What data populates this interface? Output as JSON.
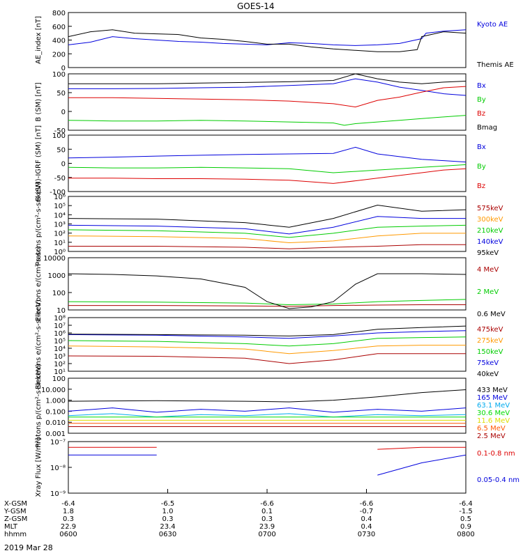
{
  "title": "GOES-14",
  "date_label": "2019 Mar 28",
  "colors": {
    "black": "#000000",
    "blue": "#0000dd",
    "red": "#dd0000",
    "green": "#00cc00",
    "orange": "#ff9900",
    "darkred": "#aa0000",
    "cyan": "#00aaee",
    "purple": "#aa00aa",
    "yellow": "#dddd00",
    "lime": "#00dd00",
    "orangered": "#ff5500",
    "magenta": "#cc00cc"
  },
  "chart_data": [
    {
      "type": "line",
      "ylabel": "AE_index [nT]",
      "ylim": [
        0,
        800
      ],
      "yticks": [
        "0",
        "200",
        "400",
        "600",
        "800"
      ],
      "legend": [
        "Kyoto AE",
        "Themis AE"
      ],
      "series": [
        {
          "name": "Kyoto AE",
          "color": "#0000dd",
          "x": [
            0,
            10,
            20,
            30,
            40,
            50,
            60,
            70,
            80,
            90,
            100,
            110,
            120,
            130,
            140,
            150,
            160,
            162,
            170,
            180
          ],
          "y": [
            330,
            370,
            450,
            420,
            400,
            380,
            370,
            350,
            340,
            330,
            360,
            350,
            330,
            320,
            330,
            350,
            420,
            500,
            530,
            550
          ]
        },
        {
          "name": "Themis AE",
          "color": "#000000",
          "x": [
            0,
            10,
            20,
            30,
            40,
            50,
            60,
            70,
            80,
            90,
            100,
            110,
            120,
            130,
            140,
            150,
            158,
            160,
            170,
            180
          ],
          "y": [
            450,
            520,
            550,
            500,
            490,
            480,
            430,
            410,
            380,
            340,
            340,
            300,
            270,
            250,
            230,
            230,
            260,
            450,
            520,
            500
          ]
        }
      ]
    },
    {
      "type": "line",
      "ylabel": "B (SM) [nT]",
      "ylim": [
        -60,
        110
      ],
      "yticks": [
        "-50",
        "0",
        "50",
        "100"
      ],
      "legend": [
        "Bx",
        "By",
        "Bz",
        "Bmag"
      ],
      "series": [
        {
          "name": "Bx",
          "color": "#0000dd",
          "x": [
            0,
            20,
            40,
            60,
            80,
            100,
            120,
            130,
            140,
            150,
            160,
            170,
            180
          ],
          "y": [
            65,
            65,
            66,
            68,
            70,
            75,
            80,
            95,
            85,
            70,
            60,
            50,
            45
          ]
        },
        {
          "name": "By",
          "color": "#00cc00",
          "x": [
            0,
            20,
            40,
            60,
            80,
            100,
            120,
            125,
            130,
            140,
            150,
            160,
            170,
            180
          ],
          "y": [
            -30,
            -32,
            -32,
            -30,
            -32,
            -35,
            -38,
            -45,
            -40,
            -35,
            -30,
            -25,
            -20,
            -15
          ]
        },
        {
          "name": "Bz",
          "color": "#dd0000",
          "x": [
            0,
            20,
            40,
            60,
            80,
            100,
            120,
            130,
            140,
            150,
            160,
            170,
            180
          ],
          "y": [
            38,
            38,
            36,
            34,
            32,
            28,
            20,
            10,
            30,
            40,
            55,
            68,
            72
          ]
        },
        {
          "name": "Bmag",
          "color": "#000000",
          "x": [
            0,
            20,
            40,
            60,
            80,
            100,
            120,
            130,
            140,
            150,
            160,
            170,
            180
          ],
          "y": [
            80,
            80,
            80,
            82,
            84,
            86,
            90,
            110,
            95,
            85,
            80,
            85,
            88
          ]
        }
      ]
    },
    {
      "type": "line",
      "ylabel": "B (SM)-IGRF (SM) [nT]",
      "ylim": [
        -110,
        100
      ],
      "yticks": [
        "-100",
        "-50",
        "0",
        "50",
        "100"
      ],
      "legend": [
        "Bx",
        "By",
        "Bz"
      ],
      "series": [
        {
          "name": "Bx",
          "color": "#0000dd",
          "x": [
            0,
            20,
            40,
            60,
            80,
            100,
            120,
            130,
            140,
            150,
            160,
            170,
            180
          ],
          "y": [
            15,
            18,
            22,
            25,
            28,
            30,
            32,
            55,
            30,
            20,
            10,
            5,
            0
          ]
        },
        {
          "name": "By",
          "color": "#00cc00",
          "x": [
            0,
            20,
            40,
            60,
            80,
            100,
            120,
            130,
            140,
            150,
            160,
            170,
            180
          ],
          "y": [
            -20,
            -22,
            -22,
            -20,
            -22,
            -25,
            -40,
            -35,
            -30,
            -25,
            -20,
            -15,
            -10
          ]
        },
        {
          "name": "Bz",
          "color": "#dd0000",
          "x": [
            0,
            20,
            40,
            60,
            80,
            100,
            120,
            130,
            140,
            150,
            160,
            170,
            180
          ],
          "y": [
            -60,
            -60,
            -62,
            -62,
            -64,
            -68,
            -80,
            -70,
            -60,
            -50,
            -40,
            -30,
            -25
          ]
        }
      ]
    },
    {
      "type": "line",
      "ylabel": "Protons p/(cm²-s-sr-keV)",
      "yscale": "log",
      "ylim": [
        0.5,
        1000000
      ],
      "yticks": [
        "10⁰",
        "10¹",
        "10²",
        "10³",
        "10⁴",
        "10⁵",
        "10⁶"
      ],
      "legend": [
        "575keV",
        "300keV",
        "210keV",
        "140keV",
        "95keV"
      ],
      "series": [
        {
          "name": "575keV",
          "color": "#aa0000",
          "x": [
            0,
            40,
            80,
            100,
            120,
            140,
            160,
            180
          ],
          "y": [
            2,
            2,
            1.5,
            1,
            1.5,
            2,
            3,
            3
          ]
        },
        {
          "name": "300keV",
          "color": "#ff9900",
          "x": [
            0,
            40,
            80,
            100,
            120,
            140,
            160,
            180
          ],
          "y": [
            30,
            25,
            15,
            5,
            8,
            30,
            60,
            60
          ]
        },
        {
          "name": "210keV",
          "color": "#00cc00",
          "x": [
            0,
            40,
            80,
            100,
            120,
            140,
            160,
            180
          ],
          "y": [
            150,
            120,
            60,
            20,
            60,
            300,
            400,
            500
          ]
        },
        {
          "name": "140keV",
          "color": "#0000dd",
          "x": [
            0,
            40,
            80,
            100,
            120,
            140,
            160,
            180
          ],
          "y": [
            500,
            400,
            200,
            50,
            300,
            5000,
            3000,
            3000
          ]
        },
        {
          "name": "95keV",
          "color": "#000000",
          "x": [
            0,
            40,
            80,
            100,
            120,
            140,
            160,
            180
          ],
          "y": [
            3000,
            2500,
            1000,
            300,
            3000,
            100000,
            20000,
            30000
          ]
        }
      ]
    },
    {
      "type": "line",
      "ylabel": "Electrons e/(cm²-s-sr)",
      "yscale": "log",
      "ylim": [
        10,
        10000
      ],
      "yticks": [
        "10",
        "100",
        "1000",
        "10000"
      ],
      "legend": [
        "4 MeV",
        "2 MeV",
        "0.6 MeV"
      ],
      "series": [
        {
          "name": "4 MeV",
          "color": "#aa0000",
          "x": [
            0,
            40,
            80,
            100,
            120,
            140,
            160,
            180
          ],
          "y": [
            18,
            18,
            17,
            16,
            18,
            19,
            20,
            20
          ]
        },
        {
          "name": "2 MeV",
          "color": "#00cc00",
          "x": [
            0,
            40,
            80,
            100,
            120,
            140,
            160,
            180
          ],
          "y": [
            30,
            28,
            25,
            20,
            22,
            30,
            35,
            40
          ]
        },
        {
          "name": "0.6 MeV",
          "color": "#000000",
          "x": [
            0,
            20,
            40,
            60,
            80,
            90,
            100,
            110,
            120,
            130,
            140,
            160,
            180
          ],
          "y": [
            1200,
            1100,
            900,
            600,
            200,
            30,
            12,
            15,
            30,
            300,
            1200,
            1200,
            1100
          ]
        }
      ]
    },
    {
      "type": "line",
      "ylabel": "Electrons e/(cm²-s-sr-keV)",
      "yscale": "log",
      "ylim": [
        10,
        100000000
      ],
      "yticks": [
        "10¹",
        "10²",
        "10³",
        "10⁴",
        "10⁵",
        "10⁶",
        "10⁷",
        "10⁸"
      ],
      "legend": [
        "475keV",
        "275keV",
        "150keV",
        "75keV",
        "40keV"
      ],
      "series": [
        {
          "name": "475keV",
          "color": "#aa0000",
          "x": [
            0,
            40,
            80,
            100,
            120,
            140,
            160,
            180
          ],
          "y": [
            1000,
            900,
            500,
            100,
            300,
            2000,
            2000,
            2000
          ]
        },
        {
          "name": "275keV",
          "color": "#ff9900",
          "x": [
            0,
            40,
            80,
            100,
            120,
            140,
            160,
            180
          ],
          "y": [
            20000,
            15000,
            8000,
            2000,
            5000,
            20000,
            25000,
            25000
          ]
        },
        {
          "name": "150keV",
          "color": "#00cc00",
          "x": [
            0,
            40,
            80,
            100,
            120,
            140,
            160,
            180
          ],
          "y": [
            100000,
            80000,
            40000,
            20000,
            40000,
            200000,
            250000,
            300000
          ]
        },
        {
          "name": "75keV",
          "color": "#0000dd",
          "x": [
            0,
            40,
            80,
            100,
            120,
            140,
            160,
            180
          ],
          "y": [
            600000,
            500000,
            300000,
            200000,
            400000,
            1000000,
            1500000,
            2000000
          ]
        },
        {
          "name": "40keV",
          "color": "#000000",
          "x": [
            0,
            40,
            80,
            100,
            120,
            140,
            160,
            180
          ],
          "y": [
            700000,
            600000,
            500000,
            400000,
            600000,
            3000000,
            5000000,
            8000000
          ]
        }
      ]
    },
    {
      "type": "line",
      "ylabel": "Protons p/(cm²-s-sr-keV)",
      "yscale": "log",
      "ylim": [
        0.001,
        100
      ],
      "yticks": [
        "0.001",
        "0.010",
        "0.100",
        "1.000",
        "10.000",
        "100"
      ],
      "legend": [
        "433 MeV",
        "165 MeV",
        "63.1 MeV",
        "30.6 MeV",
        "11.6 MeV",
        "6.5 MeV",
        "2.5 MeV"
      ],
      "series": [
        {
          "name": "433 MeV",
          "color": "#000000",
          "x": [
            0,
            40,
            80,
            100,
            120,
            140,
            160,
            180
          ],
          "y": [
            0.8,
            0.9,
            0.8,
            0.7,
            1.0,
            2.0,
            5.0,
            9.0
          ]
        },
        {
          "name": "165 MeV",
          "color": "#0000dd",
          "x": [
            0,
            20,
            40,
            60,
            80,
            100,
            120,
            140,
            160,
            180
          ],
          "y": [
            0.1,
            0.2,
            0.08,
            0.15,
            0.1,
            0.2,
            0.08,
            0.15,
            0.1,
            0.2
          ]
        },
        {
          "name": "63.1 MeV",
          "color": "#00aaee",
          "x": [
            0,
            20,
            40,
            60,
            80,
            100,
            120,
            140,
            160,
            180
          ],
          "y": [
            0.04,
            0.06,
            0.03,
            0.05,
            0.04,
            0.06,
            0.03,
            0.05,
            0.04,
            0.05
          ]
        },
        {
          "name": "30.6 MeV",
          "color": "#00dd00",
          "x": [
            0,
            40,
            80,
            120,
            160,
            180
          ],
          "y": [
            0.03,
            0.03,
            0.03,
            0.03,
            0.03,
            0.03
          ]
        },
        {
          "name": "11.6 MeV",
          "color": "#dddd00",
          "x": [
            0,
            40,
            80,
            120,
            160,
            180
          ],
          "y": [
            0.015,
            0.015,
            0.015,
            0.015,
            0.015,
            0.015
          ]
        },
        {
          "name": "6.5 MeV",
          "color": "#ff5500",
          "x": [
            0,
            40,
            80,
            120,
            160,
            180
          ],
          "y": [
            0.008,
            0.008,
            0.008,
            0.008,
            0.008,
            0.008
          ]
        },
        {
          "name": "2.5 MeV",
          "color": "#aa0000",
          "x": [
            0,
            40,
            80,
            120,
            160,
            180
          ],
          "y": [
            0.004,
            0.004,
            0.004,
            0.004,
            0.004,
            0.004
          ]
        }
      ]
    },
    {
      "type": "line",
      "ylabel": "Xray Flux [W/m²]",
      "yscale": "log",
      "ylim": [
        1e-09,
        1e-07
      ],
      "yticks": [
        "10⁻⁹",
        "10⁻⁸",
        "10⁻⁷"
      ],
      "legend": [
        "0.1-0.8 nm",
        "0.05-0.4 nm"
      ],
      "series": [
        {
          "name": "0.1-0.8 nm",
          "color": "#dd0000",
          "x": [
            0,
            20,
            40,
            126,
            140,
            160,
            180
          ],
          "y": [
            6e-08,
            6e-08,
            6e-08,
            null,
            5e-08,
            6e-08,
            6e-08
          ]
        },
        {
          "name": "0.05-0.4 nm",
          "color": "#0000dd",
          "x": [
            0,
            20,
            40,
            126,
            140,
            160,
            180
          ],
          "y": [
            3e-08,
            3e-08,
            3e-08,
            null,
            5e-09,
            1.5e-08,
            3e-08
          ]
        }
      ]
    }
  ],
  "x_axis": {
    "rows": [
      {
        "label": "X-GSM",
        "values": [
          "-6.4",
          "-6.5",
          "-6.6",
          "-6.6",
          "-6.4"
        ]
      },
      {
        "label": "Y-GSM",
        "values": [
          "1.8",
          "1.0",
          "0.1",
          "-0.7",
          "-1.5"
        ]
      },
      {
        "label": "Z-GSM",
        "values": [
          "0.3",
          "0.3",
          "0.3",
          "0.4",
          "0.5"
        ]
      },
      {
        "label": "MLT",
        "values": [
          "22.9",
          "23.4",
          "23.9",
          "0.4",
          "0.9"
        ]
      },
      {
        "label": "hhmm",
        "values": [
          "0600",
          "0630",
          "0700",
          "0730",
          "0800"
        ]
      }
    ],
    "tick_minutes": [
      0,
      30,
      60,
      90,
      120
    ]
  }
}
